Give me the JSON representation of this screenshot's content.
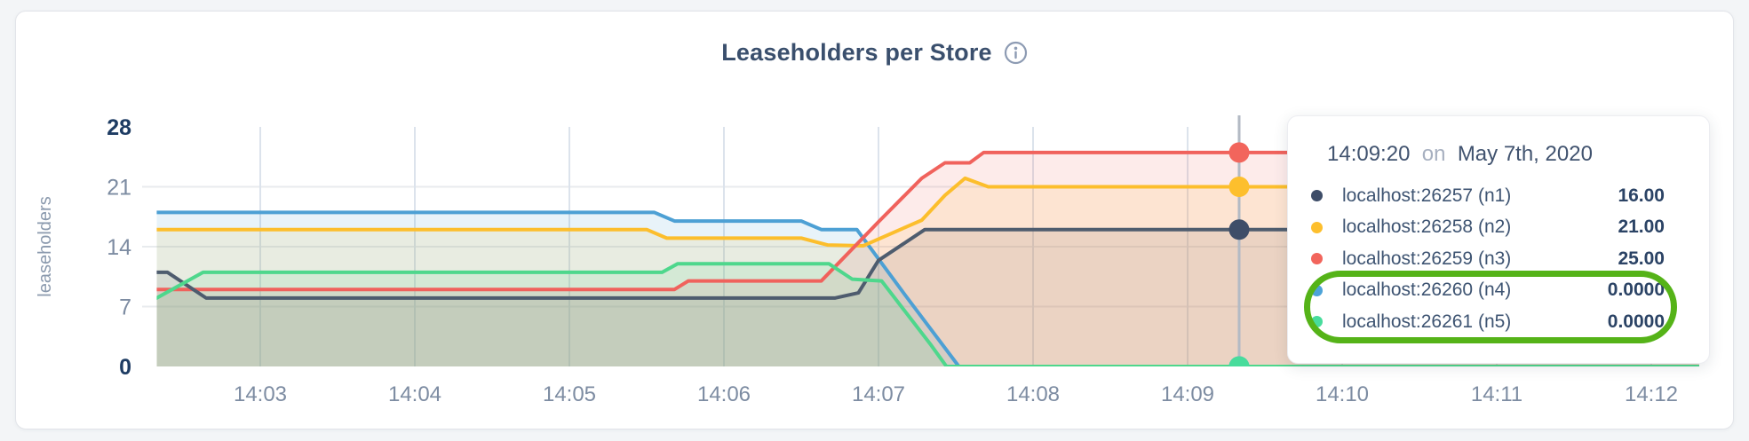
{
  "header": {
    "title": "Leaseholders per Store"
  },
  "chart_data": {
    "type": "area",
    "title": "Leaseholders per Store",
    "xlabel": "",
    "ylabel": "leaseholders",
    "ylim": [
      0,
      28
    ],
    "x_domain": [
      2.33,
      12.31
    ],
    "grid": true,
    "yticks": [
      {
        "value": 0,
        "label": "0",
        "bold": true
      },
      {
        "value": 7,
        "label": "7",
        "bold": false
      },
      {
        "value": 14,
        "label": "14",
        "bold": false
      },
      {
        "value": 21,
        "label": "21",
        "bold": false
      },
      {
        "value": 28,
        "label": "28",
        "bold": true
      }
    ],
    "xticks": [
      {
        "t": 3,
        "label": "14:03"
      },
      {
        "t": 4,
        "label": "14:04"
      },
      {
        "t": 5,
        "label": "14:05"
      },
      {
        "t": 6,
        "label": "14:06"
      },
      {
        "t": 7,
        "label": "14:07"
      },
      {
        "t": 8,
        "label": "14:08"
      },
      {
        "t": 9,
        "label": "14:09"
      },
      {
        "t": 10,
        "label": "14:10"
      },
      {
        "t": 11,
        "label": "14:11"
      },
      {
        "t": 12,
        "label": "14:12"
      }
    ],
    "series": [
      {
        "name": "localhost:26257 (n1)",
        "id": "n1",
        "color": "#4e5c6e",
        "dot_color": "#3e4d68",
        "points": [
          [
            2.33,
            11
          ],
          [
            2.4,
            11
          ],
          [
            2.65,
            8
          ],
          [
            6.72,
            8
          ],
          [
            6.87,
            8.6
          ],
          [
            7.0,
            12.4
          ],
          [
            7.3,
            16
          ],
          [
            12.31,
            16
          ]
        ]
      },
      {
        "name": "localhost:26258 (n2)",
        "id": "n2",
        "color": "#fcbe2c",
        "dot_color": "#fdbf2d",
        "points": [
          [
            2.33,
            16
          ],
          [
            5.5,
            16
          ],
          [
            5.63,
            15
          ],
          [
            6.5,
            15
          ],
          [
            6.67,
            14.2
          ],
          [
            6.9,
            14.1
          ],
          [
            7.28,
            17.1
          ],
          [
            7.43,
            20
          ],
          [
            7.56,
            22
          ],
          [
            7.71,
            21
          ],
          [
            12.31,
            21
          ]
        ]
      },
      {
        "name": "localhost:26259 (n3)",
        "id": "n3",
        "color": "#f0625c",
        "dot_color": "#f2655c",
        "points": [
          [
            2.33,
            9
          ],
          [
            5.68,
            9
          ],
          [
            5.77,
            10
          ],
          [
            6.63,
            10
          ],
          [
            7.0,
            16.9
          ],
          [
            7.28,
            22
          ],
          [
            7.43,
            23.8
          ],
          [
            7.59,
            23.8
          ],
          [
            7.68,
            25
          ],
          [
            12.31,
            25
          ]
        ]
      },
      {
        "name": "localhost:26260 (n4)",
        "id": "n4",
        "color": "#4da0d4",
        "dot_color": "#4da3d8",
        "points": [
          [
            2.33,
            18
          ],
          [
            5.55,
            18
          ],
          [
            5.68,
            17
          ],
          [
            6.5,
            17
          ],
          [
            6.63,
            16
          ],
          [
            6.86,
            16
          ],
          [
            7.17,
            8.4
          ],
          [
            7.52,
            0
          ],
          [
            12.31,
            0
          ]
        ]
      },
      {
        "name": "localhost:26261 (n5)",
        "id": "n5",
        "color": "#4ed78c",
        "dot_color": "#48dc9c",
        "points": [
          [
            2.33,
            8
          ],
          [
            2.63,
            11
          ],
          [
            5.6,
            11
          ],
          [
            5.7,
            12
          ],
          [
            6.68,
            12
          ],
          [
            6.83,
            10.2
          ],
          [
            7.02,
            10
          ],
          [
            7.34,
            2.5
          ],
          [
            7.44,
            0
          ],
          [
            12.31,
            0
          ]
        ]
      }
    ],
    "crosshair": {
      "t": 9.3333,
      "time_label": "14:09:20",
      "values": [
        16,
        21,
        25,
        0,
        0
      ]
    }
  },
  "tooltip": {
    "time": "14:09:20",
    "connector": "on",
    "date": "May 7th, 2020",
    "rows": [
      {
        "label": "localhost:26257 (n1)",
        "value": "16.00",
        "highlighted": false
      },
      {
        "label": "localhost:26258 (n2)",
        "value": "21.00",
        "highlighted": false
      },
      {
        "label": "localhost:26259 (n3)",
        "value": "25.00",
        "highlighted": false
      },
      {
        "label": "localhost:26260 (n4)",
        "value": "0.0000",
        "highlighted": true
      },
      {
        "label": "localhost:26261 (n5)",
        "value": "0.0000",
        "highlighted": true
      }
    ],
    "annotation_color": "#55b318"
  },
  "colors": {
    "page_bg": "#f3f5f7",
    "card_bg": "#ffffff",
    "title": "#3a4f6d",
    "tick_label": "#7d8ca2",
    "tick_label_bold": "#1e3c63",
    "grid_h": "#e8ebee",
    "grid_v": "#dce3ec",
    "crosshair": "#b3bac4",
    "info_icon": "#8d9bb3"
  }
}
